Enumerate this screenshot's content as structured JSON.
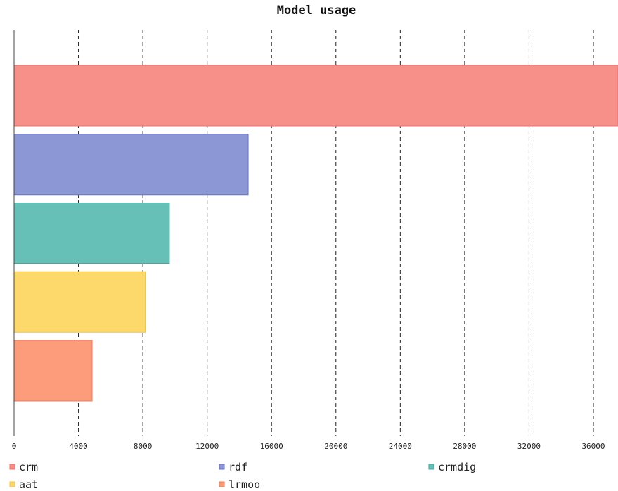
{
  "chart_data": {
    "type": "bar",
    "orientation": "horizontal",
    "title": "Model usage",
    "xlabel": "",
    "ylabel": "",
    "xlim": [
      0,
      37600
    ],
    "x_ticks": [
      0,
      4000,
      8000,
      12000,
      16000,
      20000,
      24000,
      28000,
      32000,
      36000
    ],
    "x_tick_labels": [
      "0",
      "4000",
      "8000",
      "12000",
      "16000",
      "20000",
      "24000",
      "28000",
      "32000",
      "36000"
    ],
    "grid": "vertical dashed",
    "legend_position": "bottom",
    "series": [
      {
        "name": "crm",
        "value": 37600,
        "fill": "#f8908a",
        "stroke": "#ef6f68"
      },
      {
        "name": "rdf",
        "value": 14550,
        "fill": "#8c97d6",
        "stroke": "#6672c3"
      },
      {
        "name": "crmdig",
        "value": 9650,
        "fill": "#67c0b7",
        "stroke": "#43a89d"
      },
      {
        "name": "aat",
        "value": 8150,
        "fill": "#fdd86a",
        "stroke": "#f1c448"
      },
      {
        "name": "lrmoo",
        "value": 4850,
        "fill": "#fd9c7a",
        "stroke": "#f27c58"
      }
    ]
  }
}
